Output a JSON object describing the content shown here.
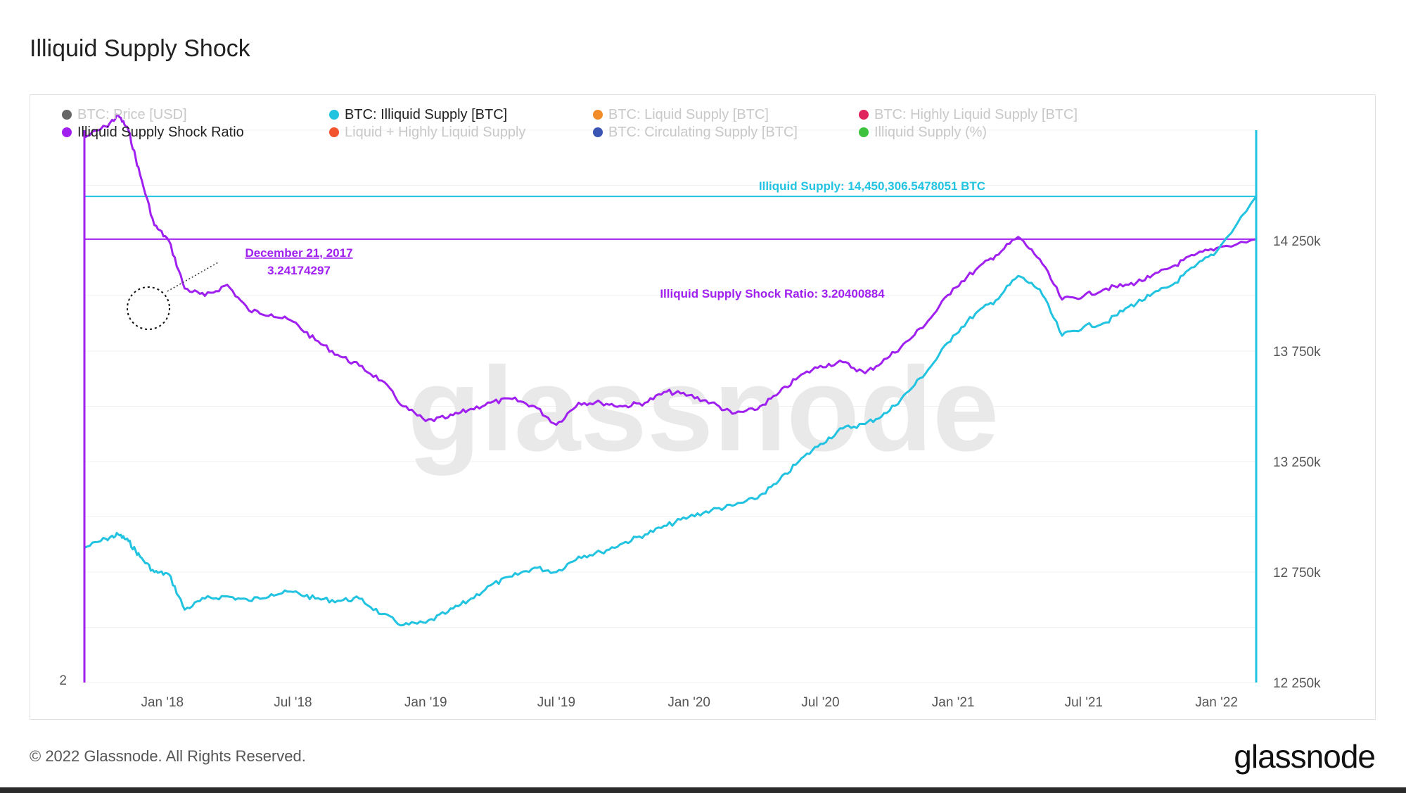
{
  "page": {
    "title": "Illiquid Supply Shock",
    "footer": "© 2022 Glassnode. All Rights Reserved.",
    "logo": "glassnode",
    "watermark": "glassnode"
  },
  "legend": [
    {
      "label": "BTC: Price [USD]",
      "color": "#666666",
      "active": false
    },
    {
      "label": "BTC: Illiquid Supply [BTC]",
      "color": "#22c3e0",
      "active": true
    },
    {
      "label": "BTC: Liquid Supply [BTC]",
      "color": "#f28c28",
      "active": false
    },
    {
      "label": "BTC: Highly Liquid Supply [BTC]",
      "color": "#e0245e",
      "active": false
    },
    {
      "label": "Illiquid Supply Shock Ratio",
      "color": "#a020f0",
      "active": true
    },
    {
      "label": "Liquid + Highly Liquid Supply",
      "color": "#f2542d",
      "active": false
    },
    {
      "label": "BTC: Circulating Supply [BTC]",
      "color": "#3a55b4",
      "active": false
    },
    {
      "label": "Illiquid Supply (%)",
      "color": "#3cc23c",
      "active": false
    }
  ],
  "annotations": {
    "illiquid_supply_label": "Illiquid Supply: 14,450,306.5478051 BTC",
    "ratio_label": "Illiquid Supply Shock Ratio: 3.20400884",
    "callout_date": "December 21, 2017",
    "callout_value": "3.24174297"
  },
  "chart_data": {
    "type": "line",
    "title": "Illiquid Supply Shock",
    "x_tick_labels": [
      "Jan '18",
      "Jul '18",
      "Jan '19",
      "Jul '19",
      "Jan '20",
      "Jul '20",
      "Jan '21",
      "Jul '21",
      "Jan '22"
    ],
    "x_range": [
      "2017-09-15",
      "2022-02-25"
    ],
    "y_left": {
      "visible_tick_labels": [
        "2"
      ],
      "range": [
        2,
        3.5
      ]
    },
    "y_right": {
      "tick_labels": [
        "12 250k",
        "12 750k",
        "13 250k",
        "13 750k",
        "14 250k"
      ],
      "range": [
        12250000,
        14750000
      ]
    },
    "colors": {
      "illiquid_supply": "#22c3e0",
      "ratio": "#a020f0"
    },
    "series": [
      {
        "name": "Illiquid Supply Shock Ratio",
        "axis": "left",
        "x": [
          "2017-09-15",
          "2017-10-15",
          "2017-11-01",
          "2017-11-15",
          "2017-12-01",
          "2017-12-21",
          "2018-01-10",
          "2018-02-01",
          "2018-03-01",
          "2018-04-01",
          "2018-05-01",
          "2018-06-01",
          "2018-07-01",
          "2018-08-01",
          "2018-09-01",
          "2018-10-01",
          "2018-11-01",
          "2018-12-01",
          "2019-01-01",
          "2019-02-01",
          "2019-03-01",
          "2019-04-01",
          "2019-05-01",
          "2019-06-01",
          "2019-07-01",
          "2019-08-01",
          "2019-09-01",
          "2019-10-01",
          "2019-11-01",
          "2019-12-01",
          "2020-01-01",
          "2020-02-01",
          "2020-03-01",
          "2020-04-01",
          "2020-05-01",
          "2020-06-01",
          "2020-07-01",
          "2020-08-01",
          "2020-09-01",
          "2020-10-01",
          "2020-11-01",
          "2020-12-01",
          "2021-01-01",
          "2021-02-01",
          "2021-03-01",
          "2021-04-01",
          "2021-05-01",
          "2021-06-01",
          "2021-07-01",
          "2021-08-01",
          "2021-09-01",
          "2021-10-01",
          "2021-11-01",
          "2021-12-01",
          "2022-01-01",
          "2022-02-25"
        ],
        "values": [
          3.48,
          3.51,
          3.54,
          3.5,
          3.38,
          3.242,
          3.2,
          3.07,
          3.05,
          3.08,
          3.01,
          3.0,
          2.98,
          2.93,
          2.89,
          2.86,
          2.82,
          2.75,
          2.71,
          2.72,
          2.74,
          2.76,
          2.77,
          2.75,
          2.7,
          2.76,
          2.76,
          2.75,
          2.76,
          2.79,
          2.78,
          2.76,
          2.73,
          2.74,
          2.78,
          2.83,
          2.86,
          2.87,
          2.84,
          2.88,
          2.93,
          2.99,
          3.07,
          3.12,
          3.16,
          3.21,
          3.15,
          3.04,
          3.05,
          3.07,
          3.08,
          3.1,
          3.13,
          3.16,
          3.18,
          3.204
        ]
      },
      {
        "name": "BTC: Illiquid Supply [BTC]",
        "axis": "right",
        "x": [
          "2017-09-15",
          "2017-10-15",
          "2017-11-01",
          "2017-11-15",
          "2017-12-01",
          "2017-12-21",
          "2018-01-10",
          "2018-02-01",
          "2018-03-01",
          "2018-04-01",
          "2018-05-01",
          "2018-06-01",
          "2018-07-01",
          "2018-08-01",
          "2018-09-01",
          "2018-10-01",
          "2018-11-01",
          "2018-12-01",
          "2019-01-01",
          "2019-02-01",
          "2019-03-01",
          "2019-04-01",
          "2019-05-01",
          "2019-06-01",
          "2019-07-01",
          "2019-08-01",
          "2019-09-01",
          "2019-10-01",
          "2019-11-01",
          "2019-12-01",
          "2020-01-01",
          "2020-02-01",
          "2020-03-01",
          "2020-04-01",
          "2020-05-01",
          "2020-06-01",
          "2020-07-01",
          "2020-08-01",
          "2020-09-01",
          "2020-10-01",
          "2020-11-01",
          "2020-12-01",
          "2021-01-01",
          "2021-02-01",
          "2021-03-01",
          "2021-04-01",
          "2021-05-01",
          "2021-06-01",
          "2021-07-01",
          "2021-08-01",
          "2021-09-01",
          "2021-10-01",
          "2021-11-01",
          "2021-12-01",
          "2022-01-01",
          "2022-02-25"
        ],
        "values": [
          12860000,
          12900000,
          12920000,
          12890000,
          12820000,
          12750000,
          12740000,
          12580000,
          12630000,
          12640000,
          12620000,
          12650000,
          12660000,
          12630000,
          12620000,
          12630000,
          12560000,
          12510000,
          12520000,
          12570000,
          12620000,
          12690000,
          12730000,
          12770000,
          12750000,
          12820000,
          12840000,
          12880000,
          12920000,
          12960000,
          13000000,
          13030000,
          13050000,
          13080000,
          13150000,
          13250000,
          13330000,
          13400000,
          13420000,
          13470000,
          13570000,
          13680000,
          13820000,
          13920000,
          13980000,
          14090000,
          14030000,
          13820000,
          13860000,
          13880000,
          13950000,
          14000000,
          14050000,
          14130000,
          14200000,
          14450306.5478051
        ]
      }
    ],
    "reference_lines": [
      {
        "axis": "right",
        "value": 14450306.5478051
      },
      {
        "axis": "left",
        "value": 3.20400884
      }
    ]
  }
}
